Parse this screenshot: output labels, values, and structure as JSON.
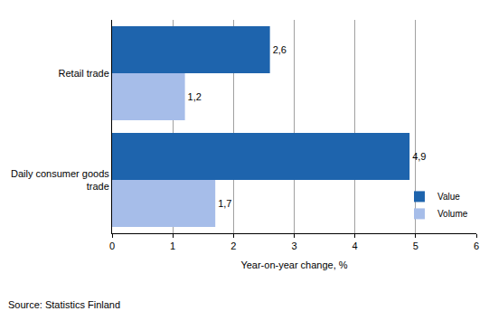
{
  "chart_data": {
    "type": "bar",
    "orientation": "horizontal",
    "categories": [
      "Retail trade",
      "Daily consumer goods trade"
    ],
    "series": [
      {
        "name": "Value",
        "color": "#1e64ad",
        "values": [
          2.6,
          4.9
        ],
        "value_labels": [
          "2,6",
          "4,9"
        ]
      },
      {
        "name": "Volume",
        "color": "#a6bde9",
        "values": [
          1.2,
          1.7
        ],
        "value_labels": [
          "1,2",
          "1,7"
        ]
      }
    ],
    "xlabel": "Year-on-year change, %",
    "xlim": [
      0,
      6
    ],
    "xticks": [
      0,
      1,
      2,
      3,
      4,
      5,
      6
    ],
    "grid": true,
    "legend": "bottom right",
    "data_labels": true,
    "annotations": [
      "Source: Statistics Finland"
    ]
  }
}
